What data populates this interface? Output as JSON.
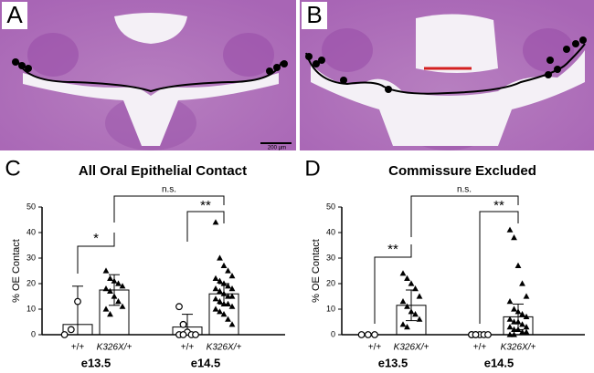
{
  "panels": {
    "labels": [
      "A",
      "B",
      "C",
      "D"
    ],
    "scale_bar": "200 µm"
  },
  "chart_data": [
    {
      "type": "bar",
      "title": "All Oral Epithelial Contact",
      "ylabel": "% OE Contact",
      "ylim": [
        0,
        50
      ],
      "yticks": [
        0,
        10,
        20,
        30,
        40,
        50
      ],
      "categories": [
        "+/+",
        "K326X/+",
        "+/+",
        "K326X/+"
      ],
      "groups": [
        "e13.5",
        "e14.5"
      ],
      "markers": [
        "circle",
        "triangle",
        "circle",
        "triangle"
      ],
      "values": [
        4,
        17.5,
        3,
        16
      ],
      "errors": [
        15,
        6,
        5,
        4
      ],
      "points": [
        [
          0,
          2,
          13
        ],
        [
          25,
          22,
          21,
          20,
          19,
          18,
          17,
          15,
          13,
          11,
          10,
          8
        ],
        [
          11,
          4,
          1,
          0,
          0,
          0,
          0
        ],
        [
          44,
          30,
          27,
          25,
          23,
          22,
          21,
          20,
          19,
          18,
          18,
          17,
          16,
          15,
          15,
          14,
          13,
          12,
          12,
          11,
          10,
          9,
          8,
          6,
          4
        ]
      ],
      "annotations": [
        "*",
        "**",
        "n.s."
      ]
    },
    {
      "type": "bar",
      "title": "Commissure Excluded",
      "ylabel": "% OE Contact",
      "ylim": [
        0,
        50
      ],
      "yticks": [
        0,
        10,
        20,
        30,
        40,
        50
      ],
      "categories": [
        "+/+",
        "K326X/+",
        "+/+",
        "K326X/+"
      ],
      "groups": [
        "e13.5",
        "e14.5"
      ],
      "markers": [
        "circle",
        "triangle",
        "circle",
        "triangle"
      ],
      "values": [
        0,
        11.5,
        0,
        7
      ],
      "errors": [
        0,
        6,
        0,
        5
      ],
      "points": [
        [
          0,
          0,
          0
        ],
        [
          24,
          22,
          20,
          18,
          15,
          13,
          11,
          9,
          8,
          6,
          4,
          3
        ],
        [
          0,
          0,
          0,
          0,
          0,
          0,
          0
        ],
        [
          41,
          38,
          27,
          20,
          15,
          13,
          10,
          9,
          8,
          7,
          6,
          5,
          5,
          4,
          3,
          3,
          2,
          2,
          1,
          1,
          0,
          0
        ]
      ],
      "annotations": [
        "**",
        "**",
        "n.s."
      ]
    }
  ]
}
